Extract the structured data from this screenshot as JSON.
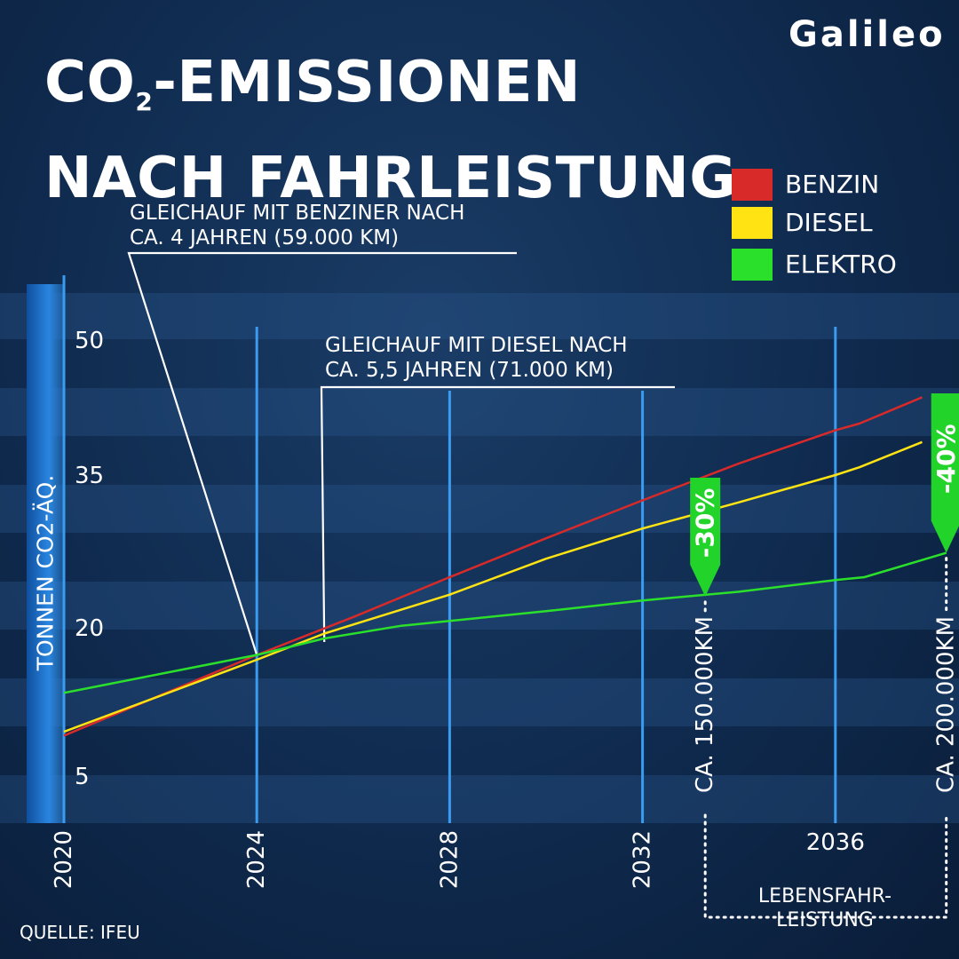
{
  "header": {
    "title_line1_pre": "CO",
    "title_line1_sub": "2",
    "title_line1_post": "-EMISSIONEN",
    "title_line2": "NACH FAHRLEISTUNG",
    "logo": "Galileo"
  },
  "legend": {
    "items": [
      {
        "label": "BENZIN",
        "color": "#d92a2a"
      },
      {
        "label": "DIESEL",
        "color": "#ffe312"
      },
      {
        "label": "ELEKTRO",
        "color": "#2be02b"
      }
    ]
  },
  "footer": {
    "source": "QUELLE: IFEU",
    "lifetime_line1": "LEBENSFAHR-",
    "lifetime_line2": "LEISTUNG"
  },
  "chart_data": {
    "type": "line",
    "title": "",
    "xlabel": "",
    "ylabel": "TONNEN CO2-ÄQ.",
    "xlim": [
      2020,
      2038.3
    ],
    "ylim": [
      0,
      55
    ],
    "x_ticks": [
      "2020",
      "2024",
      "2028",
      "2032",
      "2036"
    ],
    "y_ticks": [
      "5",
      "20",
      "35",
      "50"
    ],
    "grid": true,
    "legend_position": "top-right",
    "series": [
      {
        "name": "BENZIN",
        "color": "#d92a2a",
        "points": [
          [
            2020,
            9.0
          ],
          [
            2024,
            17.3
          ],
          [
            2026,
            21.2
          ],
          [
            2028,
            25.3
          ],
          [
            2030,
            29.3
          ],
          [
            2032,
            33.2
          ],
          [
            2034,
            37.0
          ],
          [
            2036,
            40.4
          ],
          [
            2036.5,
            41.1
          ],
          [
            2037.8,
            43.8
          ]
        ]
      },
      {
        "name": "DIESEL",
        "color": "#ffe312",
        "points": [
          [
            2020,
            9.4
          ],
          [
            2024,
            16.8
          ],
          [
            2025.4,
            19.5
          ],
          [
            2028,
            23.5
          ],
          [
            2030,
            27.2
          ],
          [
            2032,
            30.3
          ],
          [
            2034,
            33.0
          ],
          [
            2036,
            35.8
          ],
          [
            2036.5,
            36.6
          ],
          [
            2037.8,
            39.2
          ]
        ]
      },
      {
        "name": "ELEKTRO",
        "color": "#2be02b",
        "points": [
          [
            2020,
            13.4
          ],
          [
            2024,
            17.3
          ],
          [
            2025.4,
            19.0
          ],
          [
            2027,
            20.3
          ],
          [
            2030,
            21.8
          ],
          [
            2032,
            22.9
          ],
          [
            2034,
            23.8
          ],
          [
            2036,
            25.0
          ],
          [
            2036.6,
            25.3
          ],
          [
            2038.3,
            27.8
          ]
        ]
      }
    ],
    "annotations": [
      {
        "text_line1": "GLEICHAUF MIT BENZINER NACH",
        "text_line2": "CA. 4 JAHREN (59.000 KM)",
        "x": 2024,
        "y": 17.3
      },
      {
        "text_line1": "GLEICHAUF MIT DIESEL NACH",
        "text_line2": "CA. 5,5 JAHREN (71.000 KM)",
        "x": 2025.4,
        "y": 19.0
      }
    ],
    "markers": [
      {
        "label": "-30%",
        "distance": "CA. 150.000KM",
        "x": 2033.3,
        "y": 23.3
      },
      {
        "label": "-40%",
        "distance": "CA. 200.000KM",
        "x": 2038.3,
        "y": 27.8
      }
    ]
  }
}
